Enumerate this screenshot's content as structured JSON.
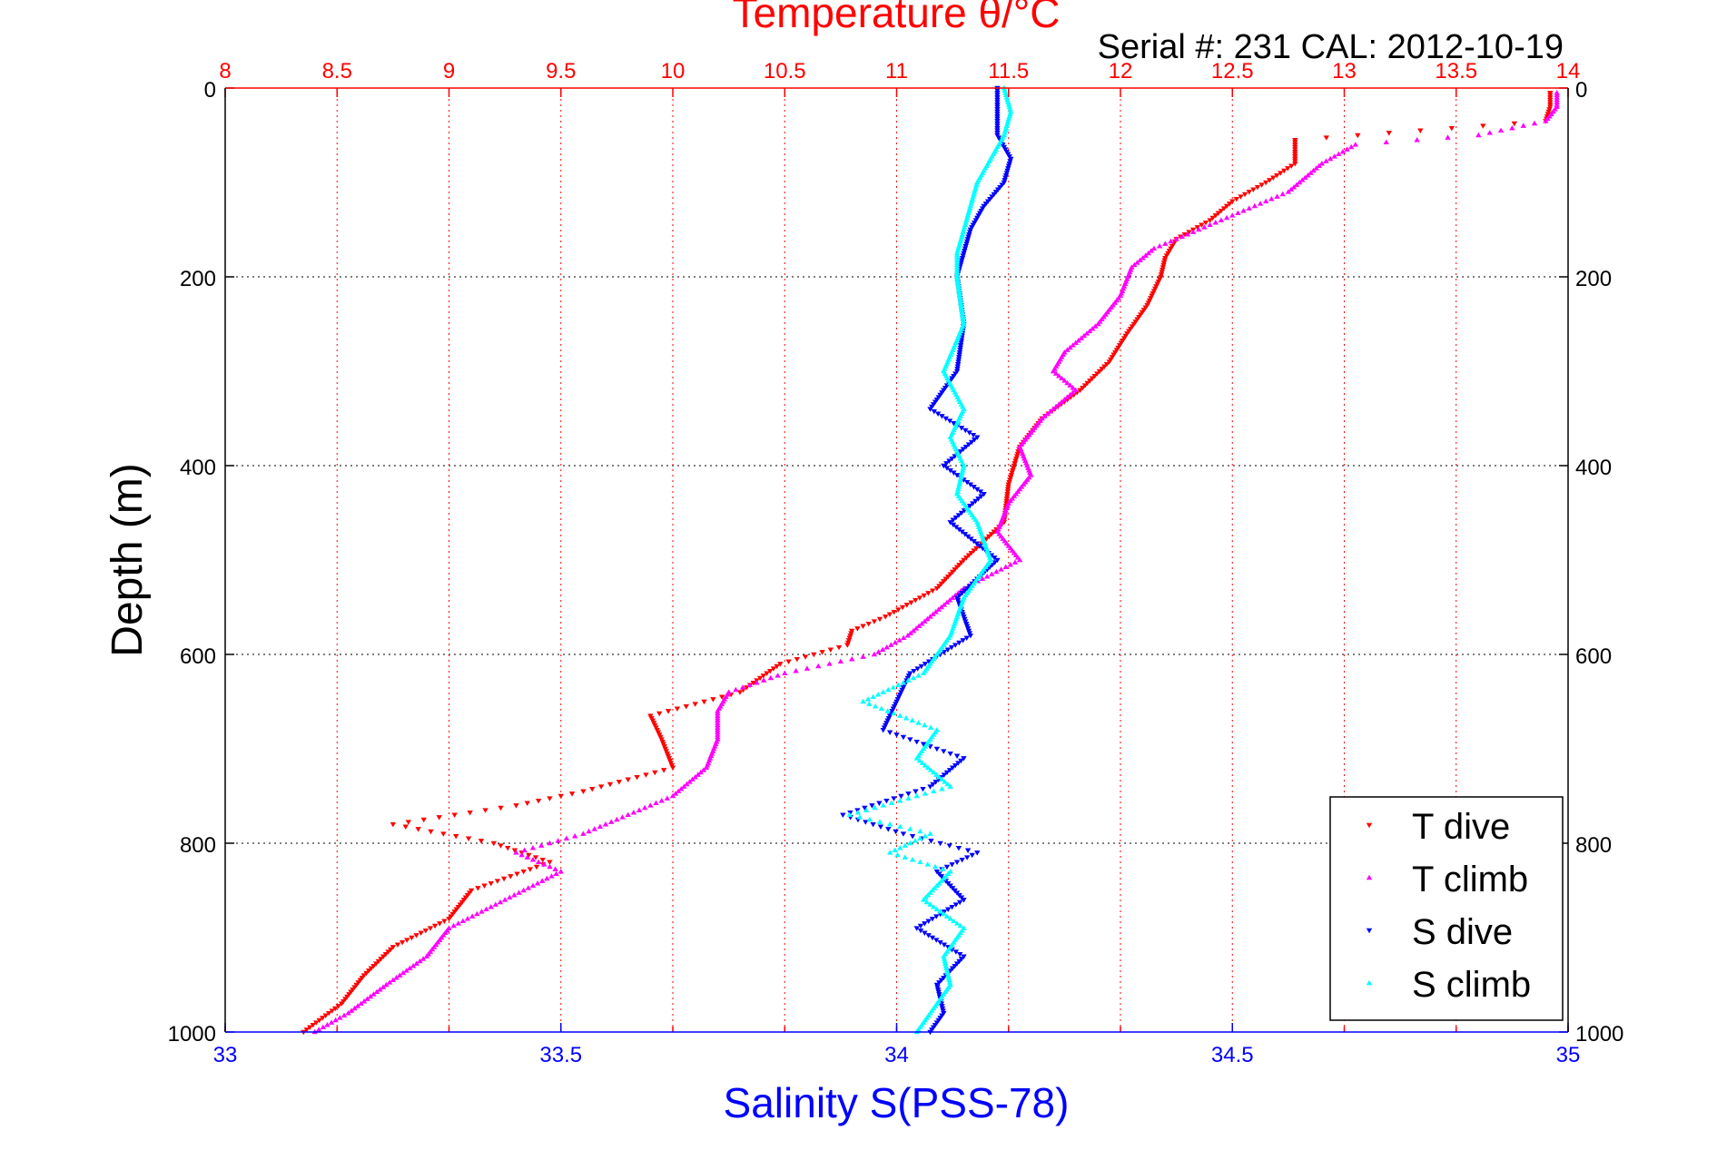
{
  "chart_data": {
    "type": "scatter",
    "title": "Temperature θ/°C",
    "subtitle": "Serial #: 231  CAL: 2012-10-19",
    "ylabel": "Depth (m)",
    "xlabel_top": "Temperature θ/°C",
    "xlabel_bottom": "Salinity S(PSS-78)",
    "ylim": [
      0,
      1000
    ],
    "y_reversed": true,
    "xlim_top": [
      8,
      14
    ],
    "xlim_bottom": [
      33,
      35
    ],
    "top_ticks": [
      "8",
      "8.5",
      "9",
      "9.5",
      "10",
      "10.5",
      "11",
      "11.5",
      "12",
      "12.5",
      "13",
      "13.5",
      "14"
    ],
    "bottom_ticks": [
      "33",
      "33.5",
      "34",
      "34.5",
      "35"
    ],
    "y_ticks": [
      "0",
      "200",
      "400",
      "600",
      "800",
      "1000"
    ],
    "grid": true,
    "legend_position": "bottom-right",
    "colors": {
      "temperature_axis": "#ff0000",
      "salinity_axis": "#0000ff",
      "t_dive": "#ff0000",
      "t_climb": "#ff00ff",
      "s_dive": "#0000ff",
      "s_climb": "#00ffff"
    },
    "series": [
      {
        "name": "T dive",
        "axis": "temperature",
        "color": "#ff0000",
        "depth": [
          5,
          20,
          35,
          55,
          80,
          100,
          120,
          140,
          160,
          180,
          200,
          230,
          260,
          290,
          320,
          350,
          380,
          420,
          460,
          500,
          530,
          560,
          575,
          590,
          610,
          640,
          665,
          690,
          720,
          745,
          760,
          780,
          800,
          820,
          850,
          880,
          910,
          940,
          970,
          1000
        ],
        "values": [
          13.92,
          13.92,
          13.9,
          12.78,
          12.78,
          12.65,
          12.5,
          12.4,
          12.25,
          12.2,
          12.18,
          12.12,
          12.03,
          11.95,
          11.82,
          11.65,
          11.55,
          11.5,
          11.48,
          11.3,
          11.18,
          10.95,
          10.8,
          10.78,
          10.48,
          10.3,
          9.9,
          9.95,
          10.0,
          9.6,
          9.3,
          8.75,
          9.2,
          9.45,
          9.1,
          9.0,
          8.75,
          8.62,
          8.52,
          8.35
        ]
      },
      {
        "name": "T climb",
        "axis": "temperature",
        "color": "#ff00ff",
        "depth": [
          5,
          20,
          35,
          50,
          60,
          80,
          110,
          140,
          170,
          190,
          220,
          250,
          280,
          300,
          320,
          350,
          380,
          410,
          440,
          470,
          500,
          530,
          550,
          580,
          600,
          620,
          640,
          660,
          690,
          720,
          750,
          770,
          790,
          810,
          830,
          860,
          890,
          920,
          950,
          980,
          1000
        ],
        "values": [
          13.95,
          13.95,
          13.9,
          13.6,
          13.05,
          12.9,
          12.75,
          12.45,
          12.15,
          12.05,
          12.0,
          11.9,
          11.75,
          11.7,
          11.8,
          11.65,
          11.55,
          11.6,
          11.5,
          11.45,
          11.55,
          11.3,
          11.2,
          11.05,
          10.9,
          10.5,
          10.25,
          10.2,
          10.2,
          10.15,
          10.0,
          9.8,
          9.6,
          9.3,
          9.5,
          9.25,
          9.0,
          8.9,
          8.72,
          8.55,
          8.4
        ]
      },
      {
        "name": "S dive",
        "axis": "salinity",
        "color": "#0000ff",
        "depth": [
          0,
          25,
          50,
          75,
          100,
          125,
          150,
          175,
          200,
          250,
          300,
          340,
          370,
          400,
          430,
          460,
          500,
          540,
          580,
          620,
          650,
          680,
          710,
          740,
          770,
          790,
          810,
          830,
          860,
          890,
          920,
          950,
          980,
          1000
        ],
        "values": [
          34.15,
          34.15,
          34.15,
          34.17,
          34.16,
          34.13,
          34.11,
          34.1,
          34.09,
          34.1,
          34.09,
          34.05,
          34.12,
          34.07,
          34.13,
          34.08,
          34.15,
          34.09,
          34.11,
          34.02,
          34.0,
          33.98,
          34.1,
          34.05,
          33.92,
          34.01,
          34.12,
          34.06,
          34.1,
          34.03,
          34.1,
          34.06,
          34.07,
          34.05
        ]
      },
      {
        "name": "S climb",
        "axis": "salinity",
        "color": "#00ffff",
        "depth": [
          0,
          25,
          50,
          75,
          100,
          125,
          150,
          175,
          200,
          250,
          300,
          340,
          370,
          400,
          430,
          460,
          500,
          540,
          580,
          620,
          650,
          680,
          710,
          740,
          770,
          790,
          810,
          830,
          860,
          890,
          920,
          950,
          980,
          1000
        ],
        "values": [
          34.16,
          34.17,
          34.16,
          34.14,
          34.12,
          34.11,
          34.1,
          34.09,
          34.09,
          34.1,
          34.07,
          34.1,
          34.08,
          34.1,
          34.09,
          34.12,
          34.14,
          34.1,
          34.08,
          34.04,
          33.95,
          34.06,
          34.03,
          34.08,
          33.93,
          34.05,
          33.99,
          34.08,
          34.04,
          34.1,
          34.07,
          34.08,
          34.05,
          34.03
        ]
      }
    ]
  }
}
